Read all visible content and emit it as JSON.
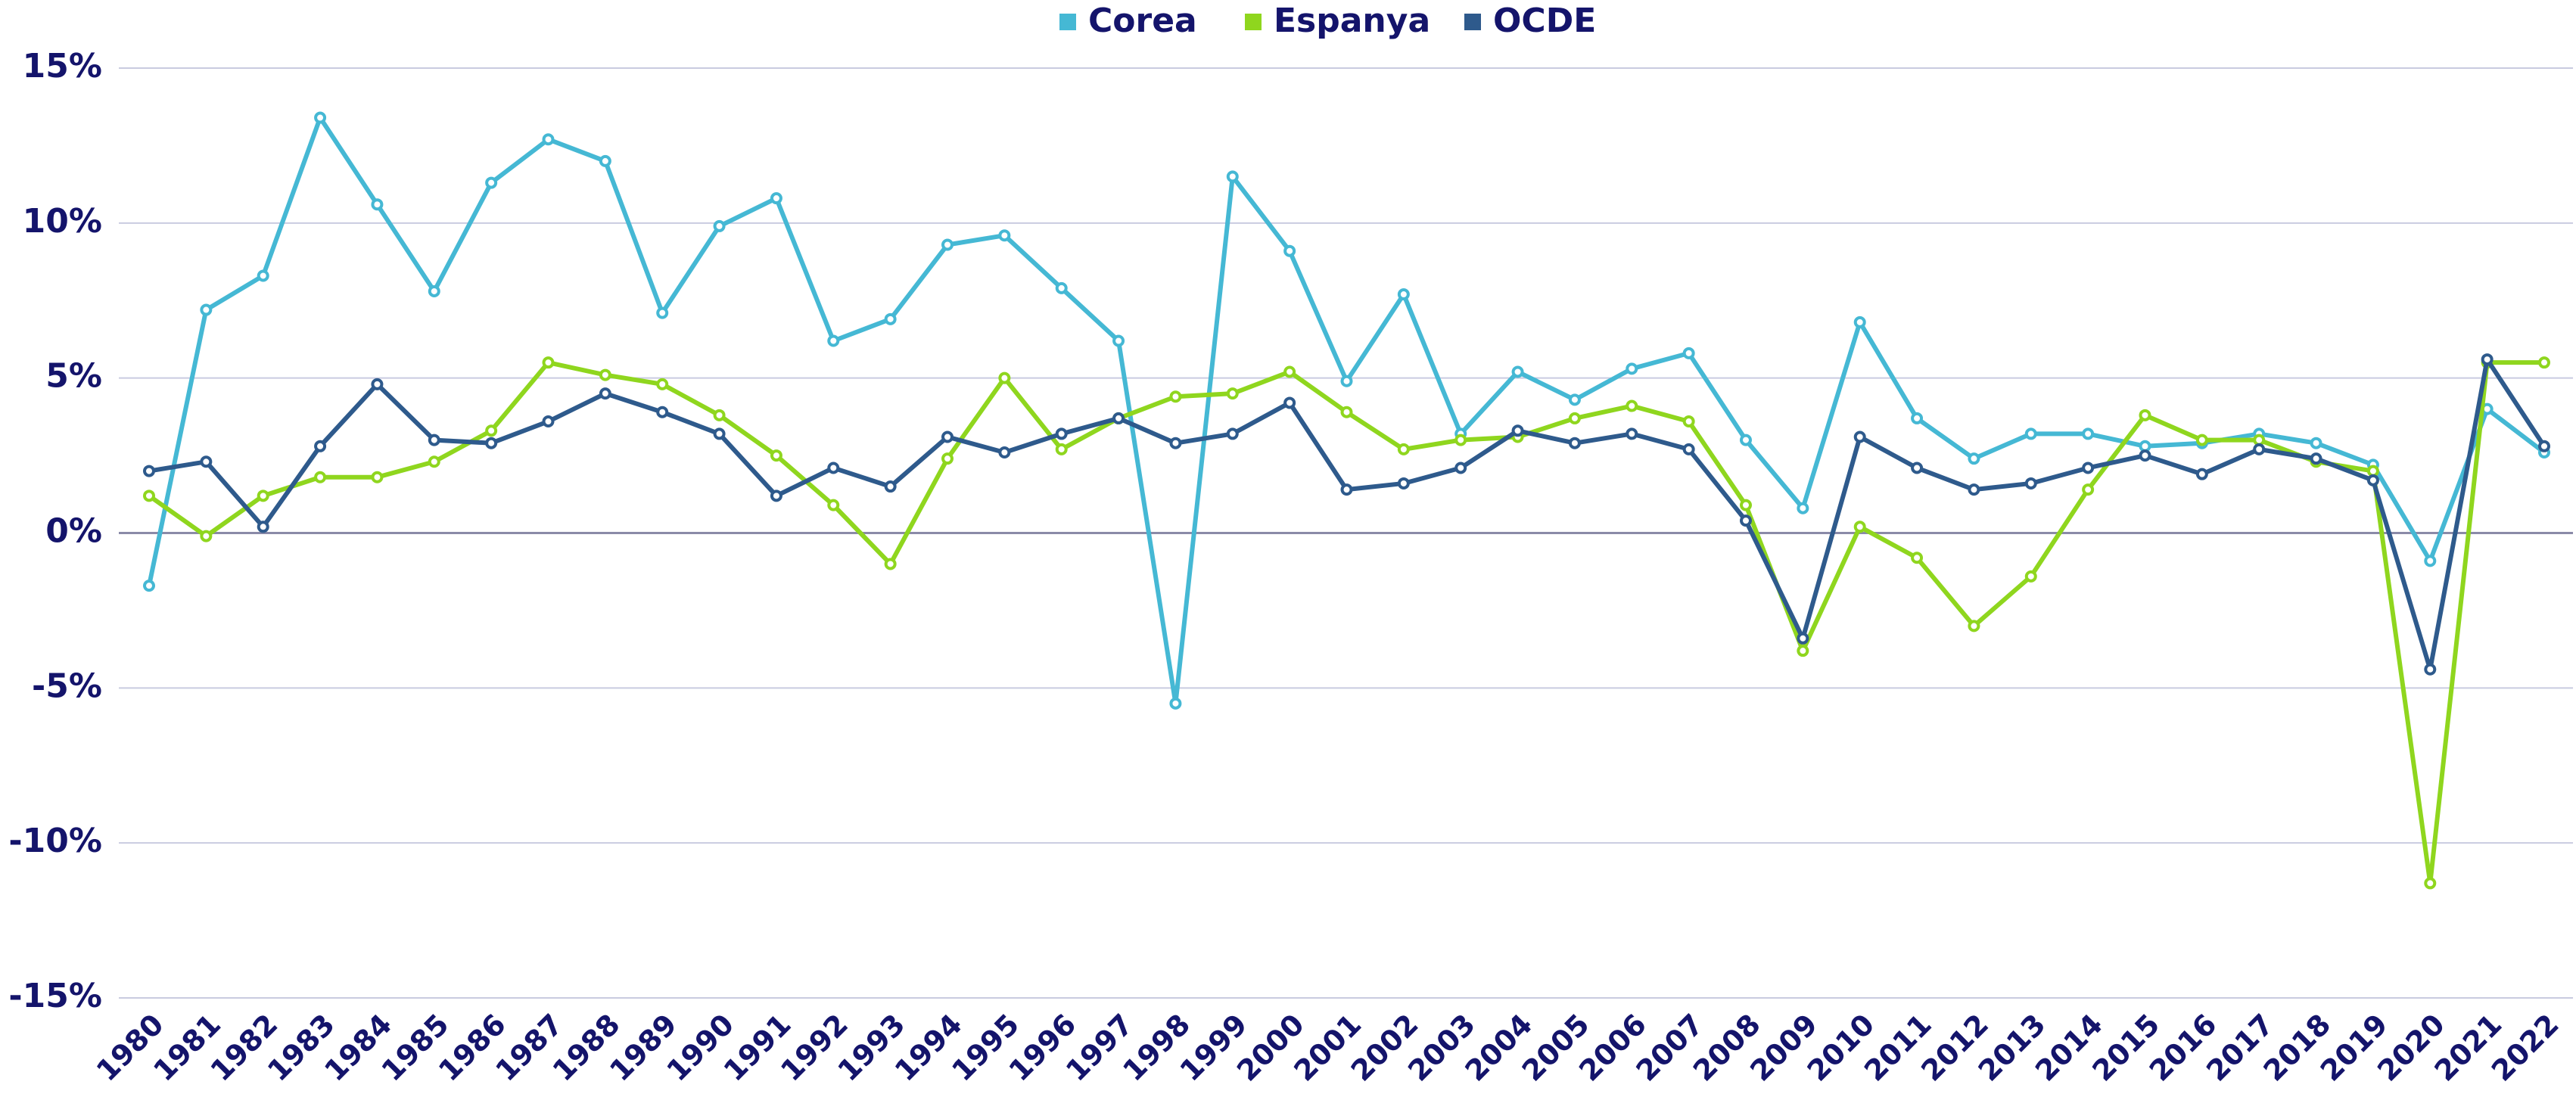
{
  "chart_data": {
    "type": "line",
    "categories": [
      "1980",
      "1981",
      "1982",
      "1983",
      "1984",
      "1985",
      "1986",
      "1987",
      "1988",
      "1989",
      "1990",
      "1991",
      "1992",
      "1993",
      "1994",
      "1995",
      "1996",
      "1997",
      "1998",
      "1999",
      "2000",
      "2001",
      "2002",
      "2003",
      "2004",
      "2005",
      "2006",
      "2007",
      "2008",
      "2009",
      "2010",
      "2011",
      "2012",
      "2013",
      "2014",
      "2015",
      "2016",
      "2017",
      "2018",
      "2019",
      "2020",
      "2021",
      "2022"
    ],
    "series": [
      {
        "name": "Corea",
        "color": "#45b8d4",
        "values": [
          -1.7,
          7.2,
          8.3,
          13.4,
          10.6,
          7.8,
          11.3,
          12.7,
          12.0,
          7.1,
          9.9,
          10.8,
          6.2,
          6.9,
          9.3,
          9.6,
          7.9,
          6.2,
          -5.5,
          11.5,
          9.1,
          4.9,
          7.7,
          3.2,
          5.2,
          4.3,
          5.3,
          5.8,
          3.0,
          0.8,
          6.8,
          3.7,
          2.4,
          3.2,
          3.2,
          2.8,
          2.9,
          3.2,
          2.9,
          2.2,
          -0.9,
          4.0,
          2.6
        ]
      },
      {
        "name": "Espanya",
        "color": "#8fd61e",
        "values": [
          1.2,
          -0.1,
          1.2,
          1.8,
          1.8,
          2.3,
          3.3,
          5.5,
          5.1,
          4.8,
          3.8,
          2.5,
          0.9,
          -1.0,
          2.4,
          5.0,
          2.7,
          3.7,
          4.4,
          4.5,
          5.2,
          3.9,
          2.7,
          3.0,
          3.1,
          3.7,
          4.1,
          3.6,
          0.9,
          -3.8,
          0.2,
          -0.8,
          -3.0,
          -1.4,
          1.4,
          3.8,
          3.0,
          3.0,
          2.3,
          2.0,
          -11.3,
          5.5,
          5.5
        ]
      },
      {
        "name": "OCDE",
        "color": "#2e5a8c",
        "values": [
          2.0,
          2.3,
          0.2,
          2.8,
          4.8,
          3.0,
          2.9,
          3.6,
          4.5,
          3.9,
          3.2,
          1.2,
          2.1,
          1.5,
          3.1,
          2.6,
          3.2,
          3.7,
          2.9,
          3.2,
          4.2,
          1.4,
          1.6,
          2.1,
          3.3,
          2.9,
          3.2,
          2.7,
          0.4,
          -3.4,
          3.1,
          2.1,
          1.4,
          1.6,
          2.1,
          2.5,
          1.9,
          2.7,
          2.4,
          1.7,
          -4.4,
          5.6,
          2.8
        ]
      }
    ],
    "ylim": [
      -15,
      15
    ],
    "yticks": [
      {
        "value": -15,
        "label": "-15%"
      },
      {
        "value": -10,
        "label": "-10%"
      },
      {
        "value": -5,
        "label": "-5%"
      },
      {
        "value": 0,
        "label": "0%"
      },
      {
        "value": 5,
        "label": "5%"
      },
      {
        "value": 10,
        "label": "10%"
      },
      {
        "value": 15,
        "label": "15%"
      }
    ],
    "grid": true,
    "legend": "top"
  }
}
